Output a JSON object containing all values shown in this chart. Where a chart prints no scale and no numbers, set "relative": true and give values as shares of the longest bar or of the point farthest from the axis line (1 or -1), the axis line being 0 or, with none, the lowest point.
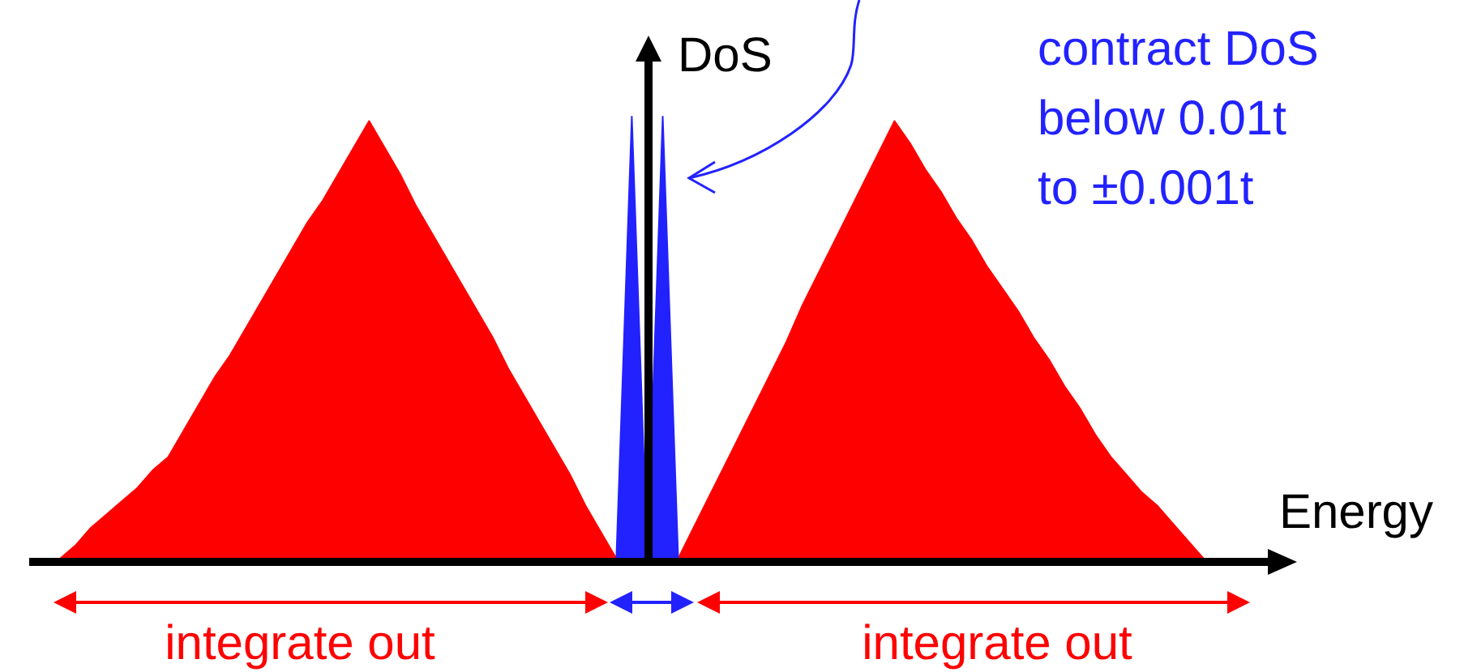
{
  "chart_data": {
    "type": "area",
    "relative": true,
    "xlabel": "Energy",
    "ylabel": "DoS",
    "categories": [
      null,
      null,
      null,
      null,
      null,
      null,
      null,
      null,
      null,
      null,
      null,
      null,
      null,
      null,
      null,
      null,
      null,
      null,
      null,
      null,
      null,
      null,
      null,
      null,
      null,
      null,
      null,
      null,
      null,
      null,
      null,
      null,
      null,
      null,
      null,
      null,
      null,
      null,
      null,
      null,
      null,
      null,
      null,
      null,
      null,
      null,
      null,
      null,
      null,
      null,
      null,
      null,
      null,
      null,
      null,
      null,
      null,
      null,
      null,
      null,
      null,
      null,
      null,
      null,
      null,
      null,
      null,
      null,
      null,
      null,
      null,
      null,
      null,
      null,
      null,
      null,
      null,
      null,
      null,
      null,
      null,
      null
    ],
    "series": [
      {
        "color": "#ff0000",
        "values": [
          null,
          null,
          0,
          0.03,
          0.07,
          0.1,
          0.13,
          0.16,
          0.2,
          0.23,
          0.29,
          0.35,
          0.41,
          0.46,
          0.52,
          0.58,
          0.64,
          0.7,
          0.76,
          0.81,
          0.87,
          0.93,
          0.99,
          0.93,
          0.87,
          0.8,
          0.74,
          0.68,
          0.62,
          0.56,
          0.5,
          0.43,
          0.37,
          0.31,
          0.25,
          0.19,
          0.12,
          0.06,
          0,
          0,
          0,
          0,
          0,
          0.07,
          0.14,
          0.21,
          0.28,
          0.35,
          0.42,
          0.49,
          0.57,
          0.64,
          0.71,
          0.78,
          0.85,
          0.92,
          0.99,
          0.94,
          0.88,
          0.83,
          0.77,
          0.72,
          0.66,
          0.61,
          0.56,
          0.5,
          0.45,
          0.39,
          0.34,
          0.28,
          0.23,
          0.19,
          0.15,
          0.12,
          0.08,
          0.04,
          0,
          null,
          null,
          null,
          null,
          null
        ]
      },
      {
        "color": "#2222ff",
        "values": [
          null,
          null,
          null,
          null,
          null,
          null,
          null,
          null,
          null,
          null,
          null,
          null,
          null,
          null,
          null,
          null,
          null,
          null,
          null,
          null,
          null,
          null,
          null,
          null,
          null,
          null,
          null,
          null,
          null,
          null,
          null,
          null,
          null,
          null,
          null,
          null,
          null,
          null,
          0,
          1,
          0,
          1,
          0,
          null,
          null,
          null,
          null,
          null,
          null,
          null,
          null,
          null,
          null,
          null,
          null,
          null,
          null,
          null,
          null,
          null,
          null,
          null,
          null,
          null,
          null,
          null,
          null,
          null,
          null,
          null,
          null,
          null,
          null,
          null,
          null,
          null,
          null,
          null,
          null,
          null,
          null,
          null
        ]
      }
    ],
    "annotations": [
      "contract DoS\nbelow 0.01t\nto ±0.001t",
      "integrate out",
      "integrate out"
    ]
  }
}
